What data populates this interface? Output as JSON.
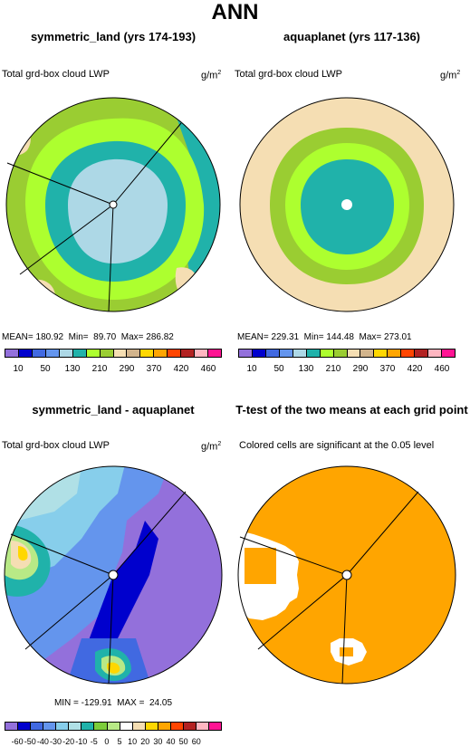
{
  "title": "ANN",
  "panels": [
    {
      "title": "symmetric_land (yrs 174-193)",
      "variable": "Total grd-box cloud LWP",
      "units": "g/m",
      "units_sup": "2",
      "stats": "MEAN= 180.92  Min=  89.70  Max= 286.82",
      "colorbar": {
        "colors": [
          "#9370DB",
          "#0000CD",
          "#4169E1",
          "#6495ED",
          "#ADD8E6",
          "#20B2AA",
          "#ADFF2F",
          "#9ACD32",
          "#F5DEB3",
          "#D2B48C",
          "#FFD700",
          "#FFA500",
          "#FF4500",
          "#B22222",
          "#FFB6C1",
          "#FF1493"
        ],
        "labels": [
          "10",
          "50",
          "130",
          "210",
          "290",
          "370",
          "420",
          "460"
        ]
      }
    },
    {
      "title": "aquaplanet (yrs 117-136)",
      "variable": "Total grd-box cloud LWP",
      "units": "g/m",
      "units_sup": "2",
      "stats": "MEAN= 229.31  Min= 144.48  Max= 273.01",
      "colorbar": {
        "colors": [
          "#9370DB",
          "#0000CD",
          "#4169E1",
          "#6495ED",
          "#ADD8E6",
          "#20B2AA",
          "#ADFF2F",
          "#9ACD32",
          "#F5DEB3",
          "#D2B48C",
          "#FFD700",
          "#FFA500",
          "#FF4500",
          "#B22222",
          "#FFB6C1",
          "#FF1493"
        ],
        "labels": [
          "10",
          "50",
          "130",
          "210",
          "290",
          "370",
          "420",
          "460"
        ]
      }
    },
    {
      "title": "symmetric_land - aquaplanet",
      "variable": "Total grd-box cloud LWP",
      "units": "g/m",
      "units_sup": "2",
      "stats": "MIN = -129.91  MAX =  24.05",
      "colorbar": {
        "colors": [
          "#9370DB",
          "#0000CD",
          "#4169E1",
          "#6495ED",
          "#87CEEB",
          "#B0E0E6",
          "#20B2AA",
          "#7CCD3A",
          "#B8E986",
          "#FFFFFF",
          "#F5DEB3",
          "#FFD700",
          "#FFA500",
          "#FF4500",
          "#B22222",
          "#FFB6C1",
          "#FF1493"
        ],
        "labels": [
          "-60",
          "-50",
          "-40",
          "-30",
          "-20",
          "-10",
          "-5",
          "0",
          "5",
          "10",
          "20",
          "30",
          "40",
          "50",
          "60"
        ]
      }
    },
    {
      "title": "T-test of the two means at each grid point",
      "note": "Colored cells are significant at the 0.05 level"
    }
  ],
  "chart_data": [
    {
      "type": "heatmap",
      "projection": "polar",
      "title": "symmetric_land (yrs 174-193)",
      "variable": "Total grd-box cloud LWP",
      "units": "g/m2",
      "mean": 180.92,
      "min": 89.7,
      "max": 286.82,
      "levels": [
        10,
        50,
        130,
        210,
        290,
        370,
        420,
        460
      ]
    },
    {
      "type": "heatmap",
      "projection": "polar",
      "title": "aquaplanet (yrs 117-136)",
      "variable": "Total grd-box cloud LWP",
      "units": "g/m2",
      "mean": 229.31,
      "min": 144.48,
      "max": 273.01,
      "levels": [
        10,
        50,
        130,
        210,
        290,
        370,
        420,
        460
      ]
    },
    {
      "type": "heatmap",
      "projection": "polar",
      "title": "symmetric_land - aquaplanet",
      "variable": "Total grd-box cloud LWP",
      "units": "g/m2",
      "min": -129.91,
      "max": 24.05,
      "levels": [
        -60,
        -50,
        -40,
        -30,
        -20,
        -10,
        -5,
        0,
        5,
        10,
        20,
        30,
        40,
        50,
        60
      ]
    },
    {
      "type": "heatmap",
      "projection": "polar",
      "title": "T-test of the two means at each grid point",
      "note": "Colored cells are significant at the 0.05 level"
    }
  ]
}
